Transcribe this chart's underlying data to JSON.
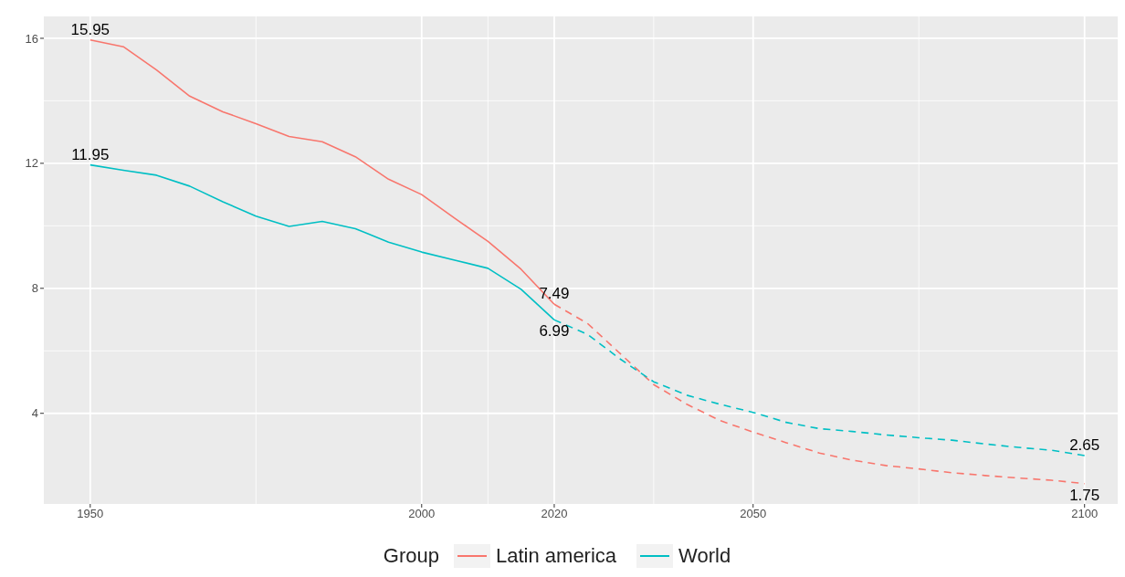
{
  "chart_data": {
    "type": "line",
    "legend_title": "Group",
    "legend": "bottom",
    "grid": true,
    "xlim": [
      1943,
      2105
    ],
    "xticks": [
      1950,
      2000,
      2020,
      2050,
      2100
    ],
    "ylim": [
      1.1,
      16.7
    ],
    "yticks": [
      4,
      8,
      12,
      16
    ],
    "series": [
      {
        "name": "Latin america",
        "color": "#f8766d",
        "line_style": "solid",
        "x": [
          1950,
          1955,
          1960,
          1965,
          1970,
          1975,
          1980,
          1985,
          1990,
          1995,
          2000,
          2005,
          2010,
          2015,
          2020
        ],
        "values": [
          15.95,
          15.73,
          14.99,
          14.15,
          13.65,
          13.27,
          12.86,
          12.69,
          12.21,
          11.49,
          11.0,
          10.24,
          9.5,
          8.61,
          7.49
        ]
      },
      {
        "color": "#f8766d",
        "line_style": "dashed",
        "x": [
          2020,
          2025,
          2030,
          2035,
          2040,
          2045,
          2050,
          2055,
          2060,
          2065,
          2070,
          2075,
          2080,
          2085,
          2090,
          2095,
          2100
        ],
        "values": [
          7.49,
          6.88,
          5.9,
          4.92,
          4.29,
          3.77,
          3.4,
          3.06,
          2.73,
          2.5,
          2.33,
          2.22,
          2.1,
          2.01,
          1.93,
          1.86,
          1.75
        ]
      },
      {
        "name": "World",
        "color": "#00bfc4",
        "line_style": "solid",
        "x": [
          1950,
          1955,
          1960,
          1965,
          1970,
          1975,
          1980,
          1985,
          1990,
          1995,
          2000,
          2005,
          2010,
          2015,
          2020
        ],
        "values": [
          11.95,
          11.78,
          11.62,
          11.27,
          10.77,
          10.31,
          9.98,
          10.14,
          9.91,
          9.48,
          9.16,
          8.9,
          8.64,
          7.97,
          6.99
        ]
      },
      {
        "color": "#00bfc4",
        "line_style": "dashed",
        "x": [
          2020,
          2025,
          2030,
          2035,
          2040,
          2045,
          2050,
          2055,
          2060,
          2065,
          2070,
          2075,
          2080,
          2085,
          2090,
          2095,
          2100
        ],
        "values": [
          6.99,
          6.53,
          5.73,
          5.01,
          4.58,
          4.29,
          4.03,
          3.71,
          3.51,
          3.42,
          3.31,
          3.22,
          3.14,
          3.02,
          2.91,
          2.82,
          2.65
        ]
      }
    ],
    "annotations": [
      {
        "text": "15.95",
        "x": 1950,
        "y": 15.95
      },
      {
        "text": "11.95",
        "x": 1950,
        "y": 11.95
      },
      {
        "text": "7.49",
        "x": 2020,
        "y": 7.49
      },
      {
        "text": "6.99",
        "x": 2020,
        "y": 6.99
      },
      {
        "text": "2.65",
        "x": 2100,
        "y": 2.65
      },
      {
        "text": "1.75",
        "x": 2100,
        "y": 1.75
      }
    ]
  }
}
